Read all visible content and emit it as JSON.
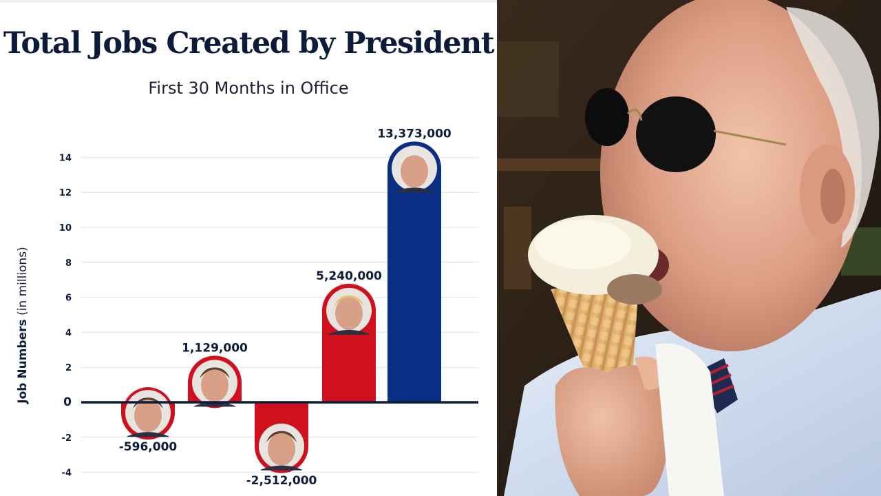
{
  "chart_data": {
    "type": "bar",
    "title": "Total Jobs Created by President",
    "subtitle": "First 30 Months in Office",
    "ylabel": "Job Numbers (in millions)",
    "xlabel": "",
    "ylim": [
      -4.5,
      14.5
    ],
    "yticks": [
      14,
      12,
      10,
      8,
      6,
      4,
      2,
      0,
      -2,
      -4
    ],
    "grid": true,
    "values": [
      -0.596,
      1.129,
      -2.512,
      5.24,
      13.373
    ],
    "value_labels": [
      "-596,000",
      "1,129,000",
      "-2,512,000",
      "5,240,000",
      "13,373,000"
    ],
    "bar_colors": [
      "#d0101c",
      "#d0101c",
      "#d0101c",
      "#d0101c",
      "#0a2e84"
    ],
    "bar_portrait_icons": [
      "president-1-portrait",
      "president-2-portrait",
      "president-3-portrait",
      "president-4-portrait",
      "president-5-portrait"
    ]
  },
  "colors": {
    "title": "#0d1b3a",
    "axis": "#0d1b3a",
    "grid": "#dfe2e8",
    "red_bar": "#d0101c",
    "blue_bar": "#0a2e84"
  },
  "photo": {
    "icon": "man-eating-ice-cream-photo"
  }
}
